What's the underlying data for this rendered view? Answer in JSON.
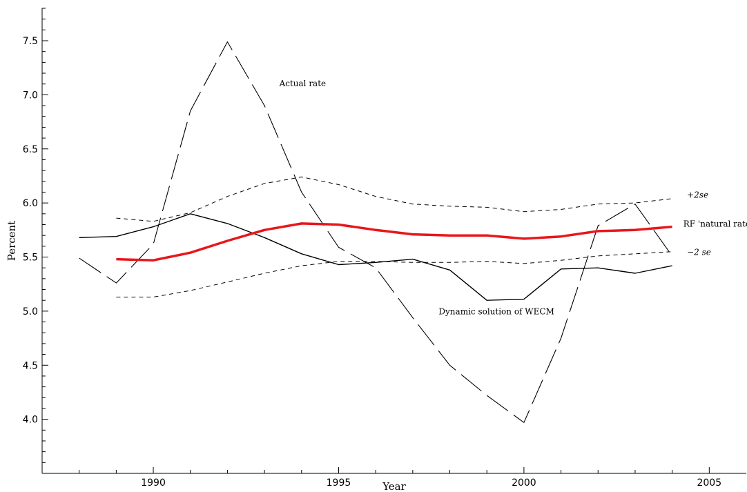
{
  "chart_data": {
    "type": "line",
    "xlabel": "Year",
    "ylabel": "Percent",
    "xlim": [
      1987,
      2006
    ],
    "ylim": [
      3.5,
      7.8
    ],
    "x_ticks": [
      1990,
      1995,
      2000,
      2005
    ],
    "y_ticks": [
      4.0,
      4.5,
      5.0,
      5.5,
      6.0,
      6.5,
      7.0,
      7.5
    ],
    "x_tick_labels": [
      "1990",
      "1995",
      "2000",
      "2005"
    ],
    "y_tick_labels": [
      "4.0",
      "4.5",
      "5.0",
      "5.5",
      "6.0",
      "6.5",
      "7.0",
      "7.5"
    ],
    "grid": false,
    "series": [
      {
        "key": "actual",
        "style": "long-dash",
        "color": "#000000",
        "x": [
          1988,
          1989,
          1990,
          1991,
          1992,
          1993,
          1994,
          1995,
          1996,
          1997,
          1998,
          1999,
          2000,
          2001,
          2002,
          2003,
          2004
        ],
        "y": [
          5.49,
          5.26,
          5.62,
          6.85,
          7.49,
          6.9,
          6.1,
          5.59,
          5.4,
          4.94,
          4.5,
          4.22,
          3.97,
          4.75,
          5.79,
          5.99,
          5.51
        ]
      },
      {
        "key": "wecm",
        "style": "solid",
        "color": "#000000",
        "x": [
          1988,
          1989,
          1990,
          1991,
          1992,
          1993,
          1994,
          1995,
          1996,
          1997,
          1998,
          1999,
          2000,
          2001,
          2002,
          2003,
          2004
        ],
        "y": [
          5.68,
          5.69,
          5.78,
          5.9,
          5.81,
          5.68,
          5.53,
          5.43,
          5.45,
          5.48,
          5.38,
          5.1,
          5.11,
          5.39,
          5.4,
          5.35,
          5.42
        ]
      },
      {
        "key": "natural",
        "style": "thick-solid",
        "color": "#e8161b",
        "x": [
          1989,
          1990,
          1991,
          1992,
          1993,
          1994,
          1995,
          1996,
          1997,
          1998,
          1999,
          2000,
          2001,
          2002,
          2003,
          2004
        ],
        "y": [
          5.48,
          5.47,
          5.54,
          5.65,
          5.75,
          5.81,
          5.8,
          5.75,
          5.71,
          5.7,
          5.7,
          5.67,
          5.69,
          5.74,
          5.75,
          5.78
        ]
      },
      {
        "key": "upper",
        "style": "short-dash",
        "color": "#000000",
        "x": [
          1989,
          1990,
          1991,
          1992,
          1993,
          1994,
          1995,
          1996,
          1997,
          1998,
          1999,
          2000,
          2001,
          2002,
          2003,
          2004
        ],
        "y": [
          5.86,
          5.83,
          5.91,
          6.06,
          6.18,
          6.24,
          6.17,
          6.06,
          5.99,
          5.97,
          5.96,
          5.92,
          5.94,
          5.99,
          6.0,
          6.04
        ]
      },
      {
        "key": "lower",
        "style": "short-dash",
        "color": "#000000",
        "x": [
          1989,
          1990,
          1991,
          1992,
          1993,
          1994,
          1995,
          1996,
          1997,
          1998,
          1999,
          2000,
          2001,
          2002,
          2003,
          2004
        ],
        "y": [
          5.13,
          5.13,
          5.19,
          5.27,
          5.35,
          5.42,
          5.46,
          5.46,
          5.45,
          5.45,
          5.46,
          5.44,
          5.47,
          5.51,
          5.53,
          5.55
        ]
      }
    ],
    "annotations": [
      {
        "key": "actual_label",
        "text": "Actual rate",
        "x": 1993.4,
        "y": 7.08,
        "italic": false
      },
      {
        "key": "wecm_label",
        "text": "Dynamic solution of  WECM",
        "x": 1997.7,
        "y": 4.97,
        "italic": false
      },
      {
        "key": "natural_label",
        "text": "RF 'natural rate'",
        "x": 2004.3,
        "y": 5.78,
        "italic": false
      },
      {
        "key": "upper_label",
        "text": "+2se",
        "x": 2004.4,
        "y": 6.05,
        "italic": true
      },
      {
        "key": "lower_label",
        "text": "−2 se",
        "x": 2004.4,
        "y": 5.52,
        "italic": true
      }
    ]
  }
}
